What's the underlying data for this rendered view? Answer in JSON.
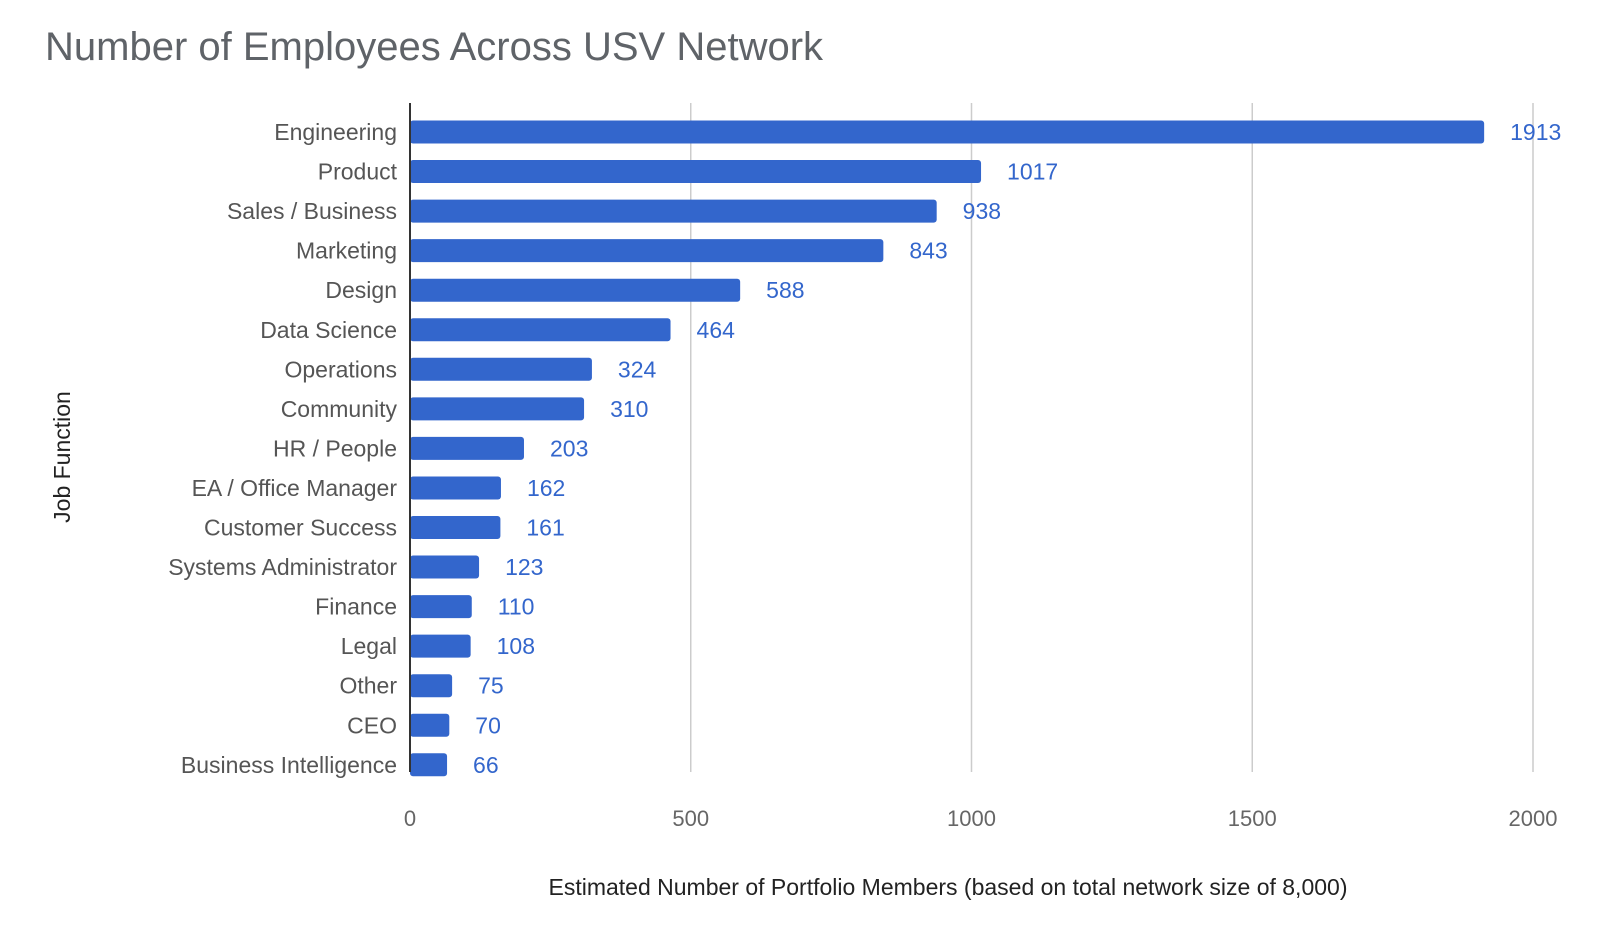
{
  "chart_data": {
    "type": "bar",
    "orientation": "horizontal",
    "title": "Number of Employees Across USV Network",
    "xlabel": "Estimated Number of Portfolio Members (based on total network size of 8,000)",
    "ylabel": "Job Function",
    "xlim": [
      0,
      2000
    ],
    "xticks": [
      0,
      500,
      1000,
      1500,
      2000
    ],
    "grid": true,
    "legend": "none",
    "bar_color": "#3366cc",
    "label_color": "#3366cc",
    "categories": [
      "Engineering",
      "Product",
      "Sales / Business",
      "Marketing",
      "Design",
      "Data Science",
      "Operations",
      "Community",
      "HR / People",
      "EA / Office Manager",
      "Customer Success",
      "Systems Administrator",
      "Finance",
      "Legal",
      "Other",
      "CEO",
      "Business Intelligence"
    ],
    "values": [
      1913,
      1017,
      938,
      843,
      588,
      464,
      324,
      310,
      203,
      162,
      161,
      123,
      110,
      108,
      75,
      70,
      66
    ]
  }
}
